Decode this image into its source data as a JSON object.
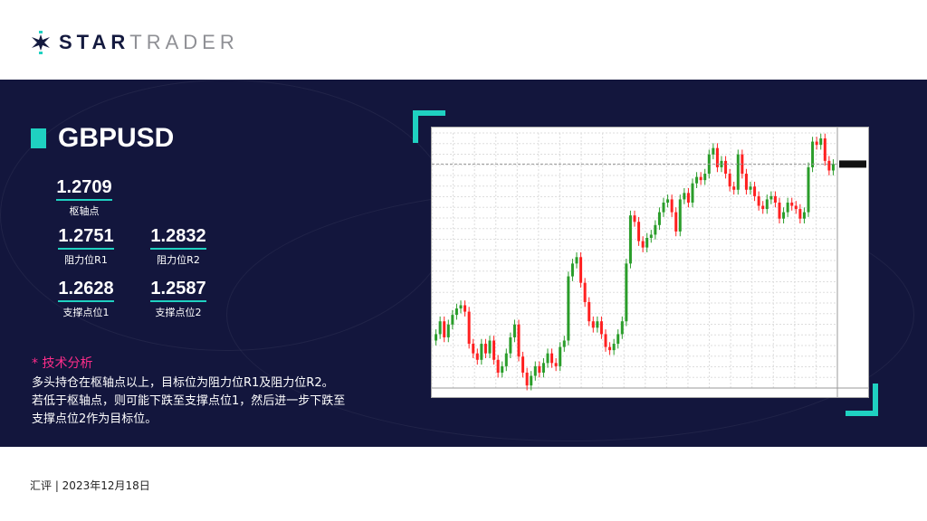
{
  "brand": {
    "name_bold": "STAR",
    "name_light": "TRADER",
    "accent": "#1fd1c1"
  },
  "pair": "GBPUSD",
  "levels": {
    "pivot": {
      "value": "1.2709",
      "label": "枢轴点"
    },
    "r1": {
      "value": "1.2751",
      "label": "阻力位R1"
    },
    "r2": {
      "value": "1.2832",
      "label": "阻力位R2"
    },
    "s1": {
      "value": "1.2628",
      "label": "支撑点位1"
    },
    "s2": {
      "value": "1.2587",
      "label": "支撑点位2"
    }
  },
  "analysis": {
    "title": "* 技术分析",
    "lines": [
      "多头持仓在枢轴点以上，目标位为阻力位R1及阻力位R2。",
      "若低于枢轴点，则可能下跌至支撑点位1，然后进一步下跌至",
      "支撑点位2作为目标位。"
    ]
  },
  "footer": "汇评 | 2023年12月18日",
  "colors": {
    "background": "#13163d",
    "up": "#2a9d2a",
    "down": "#ff2020",
    "title_accent": "#ff2d8a"
  },
  "chart_data": {
    "type": "candlestick",
    "ylim": [
      1.2052,
      1.2847
    ],
    "grid": true,
    "closes": [
      1.222,
      1.226,
      1.221,
      1.225,
      1.228,
      1.23,
      1.231,
      1.229,
      1.219,
      1.216,
      1.214,
      1.219,
      1.216,
      1.22,
      1.214,
      1.21,
      1.212,
      1.216,
      1.221,
      1.225,
      1.215,
      1.21,
      1.206,
      1.209,
      1.212,
      1.21,
      1.213,
      1.216,
      1.213,
      1.212,
      1.218,
      1.22,
      1.24,
      1.244,
      1.246,
      1.238,
      1.232,
      1.226,
      1.224,
      1.226,
      1.222,
      1.218,
      1.217,
      1.219,
      1.222,
      1.226,
      1.244,
      1.259,
      1.257,
      1.251,
      1.249,
      1.252,
      1.253,
      1.256,
      1.26,
      1.263,
      1.264,
      1.26,
      1.254,
      1.264,
      1.266,
      1.263,
      1.269,
      1.271,
      1.27,
      1.272,
      1.278,
      1.28,
      1.274,
      1.276,
      1.272,
      1.268,
      1.267,
      1.278,
      1.272,
      1.267,
      1.268,
      1.265,
      1.262,
      1.261,
      1.264,
      1.265,
      1.263,
      1.258,
      1.26,
      1.263,
      1.262,
      1.261,
      1.258,
      1.26,
      1.274,
      1.282,
      1.281,
      1.283,
      1.276,
      1.273,
      1.275
    ]
  }
}
